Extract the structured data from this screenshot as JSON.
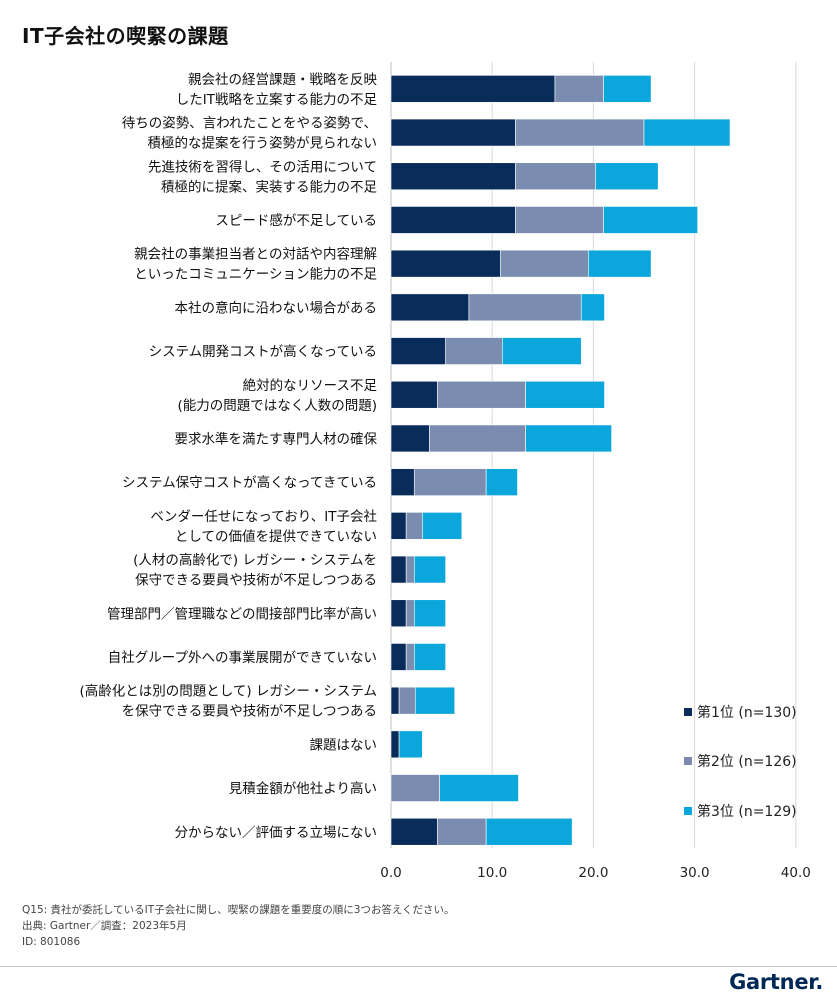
{
  "title": "IT子会社の喫緊の課題",
  "notes": [
    "Q15: 貴社が委託しているIT子会社に関し、喫緊の課題を重要度の順に3つお答えください。",
    "出典: Gartner／調査：2023年5月",
    "ID: 801086"
  ],
  "brand": "Gartner.",
  "colors": {
    "rank1": "#0a2c5a",
    "rank2": "#7a8db0",
    "rank3": "#0aa6dc",
    "grid": "#d9d9d9"
  },
  "chart_data": {
    "type": "bar",
    "orientation": "horizontal",
    "stacked": true,
    "xlim": [
      0,
      40
    ],
    "xticks": [
      "0.0",
      "10.0",
      "20.0",
      "30.0",
      "40.0"
    ],
    "grid": true,
    "legend_position": "right",
    "categories": [
      [
        "親会社の経営課題・戦略を反映",
        "したIT戦略を立案する能力の不足"
      ],
      [
        "待ちの姿勢、言われたことをやる姿勢で、",
        "積極的な提案を行う姿勢が見られない"
      ],
      [
        "先進技術を習得し、その活用について",
        "積極的に提案、実装する能力の不足"
      ],
      [
        "スピード感が不足している"
      ],
      [
        "親会社の事業担当者との対話や内容理解",
        "といったコミュニケーション能力の不足"
      ],
      [
        "本社の意向に沿わない場合がある"
      ],
      [
        "システム開発コストが高くなっている"
      ],
      [
        "絶対的なリソース不足",
        "(能力の問題ではなく人数の問題)"
      ],
      [
        "要求水準を満たす専門人材の確保"
      ],
      [
        "システム保守コストが高くなってきている"
      ],
      [
        "ベンダー任せになっており、IT子会社",
        "としての価値を提供できていない"
      ],
      [
        "(人材の高齢化で) レガシー・システムを",
        "保守できる要員や技術が不足しつつある"
      ],
      [
        "管理部門／管理職などの間接部門比率が高い"
      ],
      [
        "自社グループ外への事業展開ができていない"
      ],
      [
        "(高齢化とは別の問題として) レガシー・システム",
        "を保守できる要員や技術が不足しつつある"
      ],
      [
        "課題はない"
      ],
      [
        "見積金額が他社より高い"
      ],
      [
        "分からない／評価する立場にない"
      ]
    ],
    "series": [
      {
        "name": "第1位 (n=130)",
        "values": [
          16.2,
          12.3,
          12.3,
          12.3,
          10.8,
          7.7,
          5.4,
          4.6,
          3.8,
          2.3,
          1.5,
          1.5,
          1.5,
          1.5,
          0.8,
          0.8,
          0.0,
          4.6
        ]
      },
      {
        "name": "第2位 (n=126)",
        "values": [
          4.8,
          12.7,
          7.9,
          8.7,
          8.7,
          11.1,
          5.6,
          8.7,
          9.5,
          7.1,
          1.6,
          0.8,
          0.8,
          0.8,
          1.6,
          0.0,
          4.8,
          4.8
        ]
      },
      {
        "name": "第3位 (n=129)",
        "values": [
          4.7,
          8.5,
          6.2,
          9.3,
          6.2,
          2.3,
          7.8,
          7.8,
          8.5,
          3.1,
          3.9,
          3.1,
          3.1,
          3.1,
          3.9,
          2.3,
          7.8,
          8.5
        ]
      }
    ]
  }
}
